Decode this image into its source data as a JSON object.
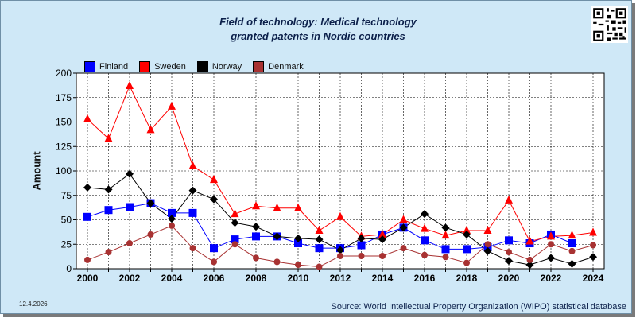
{
  "chart_data": {
    "type": "line",
    "title": "Field of technology: Medical technology",
    "subtitle": "granted patents in Nordic countries",
    "ylabel": "Amount",
    "xlabel": "",
    "ylim": [
      0,
      200
    ],
    "yticks": [
      0,
      25,
      50,
      75,
      100,
      125,
      150,
      175,
      200
    ],
    "x": [
      2000,
      2001,
      2002,
      2003,
      2004,
      2005,
      2006,
      2007,
      2008,
      2009,
      2010,
      2011,
      2012,
      2013,
      2014,
      2015,
      2016,
      2017,
      2018,
      2019,
      2020,
      2021,
      2022,
      2023,
      2024
    ],
    "xticks": [
      2000,
      2002,
      2004,
      2006,
      2008,
      2010,
      2012,
      2014,
      2016,
      2018,
      2020,
      2022,
      2024
    ],
    "grid": true,
    "legend_position": "top-left",
    "series": [
      {
        "name": "Finland",
        "color": "#0000ff",
        "marker": "square",
        "values": [
          53,
          60,
          63,
          67,
          57,
          57,
          21,
          30,
          33,
          33,
          26,
          21,
          21,
          24,
          35,
          42,
          29,
          20,
          20,
          22,
          29,
          26,
          35,
          26,
          null
        ]
      },
      {
        "name": "Sweden",
        "color": "#ff0000",
        "marker": "triangle",
        "values": [
          153,
          133,
          187,
          142,
          166,
          105,
          91,
          56,
          64,
          62,
          62,
          39,
          53,
          33,
          35,
          50,
          41,
          34,
          39,
          39,
          70,
          28,
          33,
          34,
          37
        ]
      },
      {
        "name": "Norway",
        "color": "#000000",
        "marker": "diamond",
        "values": [
          83,
          81,
          97,
          67,
          51,
          80,
          71,
          47,
          43,
          33,
          31,
          30,
          19,
          31,
          30,
          42,
          56,
          42,
          35,
          18,
          8,
          4,
          11,
          5,
          12
        ]
      },
      {
        "name": "Denmark",
        "color": "#a83232",
        "marker": "circle",
        "values": [
          9,
          17,
          26,
          35,
          44,
          21,
          7,
          25,
          11,
          7,
          4,
          2,
          13,
          13,
          13,
          21,
          14,
          12,
          6,
          25,
          17,
          9,
          25,
          18,
          24
        ]
      }
    ]
  },
  "date": "12.4.2026",
  "source": "Source: World Intellectual Property Organization (WIPO) statistical database"
}
